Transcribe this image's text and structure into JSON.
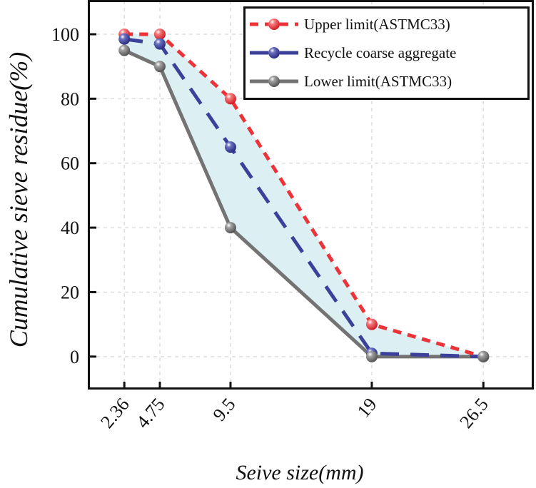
{
  "chart_data": {
    "type": "line",
    "xlabel": "Seive size(mm)",
    "ylabel": "Cumulative sieve residue(%)",
    "x": [
      2.36,
      4.75,
      9.5,
      19,
      26.5
    ],
    "x_tick_labels": [
      "2.36",
      "4.75",
      "9.5",
      "19",
      "26.5"
    ],
    "y_ticks": [
      0,
      20,
      40,
      60,
      80,
      100
    ],
    "y_tick_labels": [
      "0",
      "20",
      "40",
      "60",
      "80",
      "100"
    ],
    "xlim": [
      0,
      29.8
    ],
    "ylim": [
      -10,
      110.4
    ],
    "grid": true,
    "legend_position": "top-right",
    "fill_between": {
      "upper": "Upper limit(ASTMC33)",
      "lower": "Lower limit(ASTMC33)",
      "color": "#dcf0f3"
    },
    "series": [
      {
        "name": "Upper limit(ASTMC33)",
        "values": [
          100,
          100,
          80,
          10,
          0
        ],
        "color": "#ee3338",
        "dash": "short"
      },
      {
        "name": "Recycle coarse aggregate",
        "values": [
          98.5,
          97,
          65,
          1,
          0
        ],
        "color": "#3c409a",
        "dash": "long"
      },
      {
        "name": "Lower limit(ASTMC33)",
        "values": [
          95,
          90,
          40,
          0,
          0
        ],
        "color": "#737373",
        "dash": "solid"
      }
    ]
  }
}
